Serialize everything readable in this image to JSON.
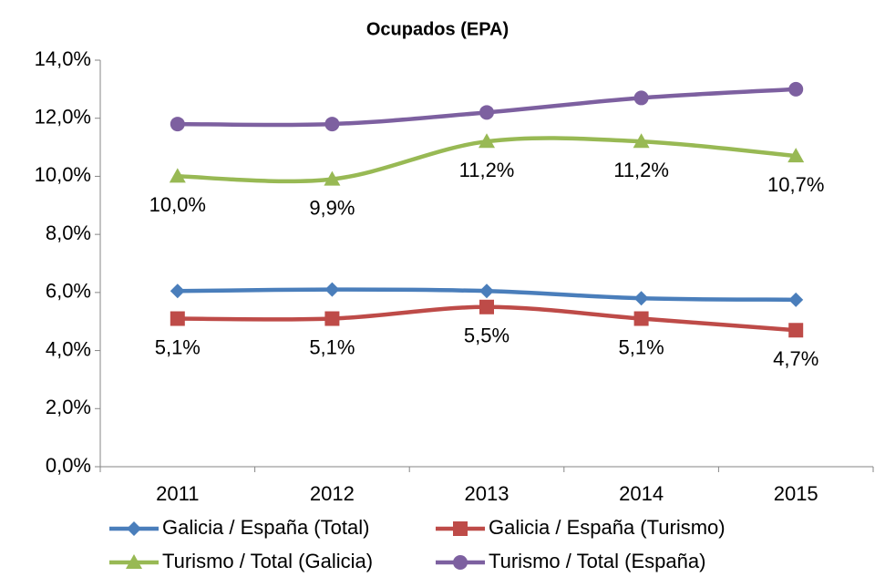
{
  "chart_data": {
    "type": "line",
    "title": "Ocupados (EPA)",
    "categories": [
      "2011",
      "2012",
      "2013",
      "2014",
      "2015"
    ],
    "ylim": [
      0,
      14
    ],
    "yticks": [
      {
        "value": 0,
        "label": "0,0%"
      },
      {
        "value": 2,
        "label": "2,0%"
      },
      {
        "value": 4,
        "label": "4,0%"
      },
      {
        "value": 6,
        "label": "6,0%"
      },
      {
        "value": 8,
        "label": "8,0%"
      },
      {
        "value": 10,
        "label": "10,0%"
      },
      {
        "value": 12,
        "label": "12,0%"
      },
      {
        "value": 14,
        "label": "14,0%"
      }
    ],
    "series": [
      {
        "name": "Galicia / España (Total)",
        "color": "#4a7ebb",
        "marker": "diamond",
        "values": [
          6.05,
          6.1,
          6.05,
          5.8,
          5.75
        ]
      },
      {
        "name": "Galicia / España (Turismo)",
        "color": "#be4b48",
        "marker": "square",
        "values": [
          5.1,
          5.1,
          5.5,
          5.1,
          4.7
        ],
        "value_labels": [
          "5,1%",
          "5,1%",
          "5,5%",
          "5,1%",
          "4,7%"
        ]
      },
      {
        "name": "Turismo / Total (Galicia)",
        "color": "#98b954",
        "marker": "triangle",
        "values": [
          10.0,
          9.9,
          11.2,
          11.2,
          10.7
        ],
        "value_labels": [
          "10,0%",
          "9,9%",
          "11,2%",
          "11,2%",
          "10,7%"
        ]
      },
      {
        "name": "Turismo / Total (España)",
        "color": "#7d60a0",
        "marker": "circle",
        "values": [
          11.8,
          11.8,
          12.2,
          12.7,
          13.0
        ]
      }
    ]
  }
}
